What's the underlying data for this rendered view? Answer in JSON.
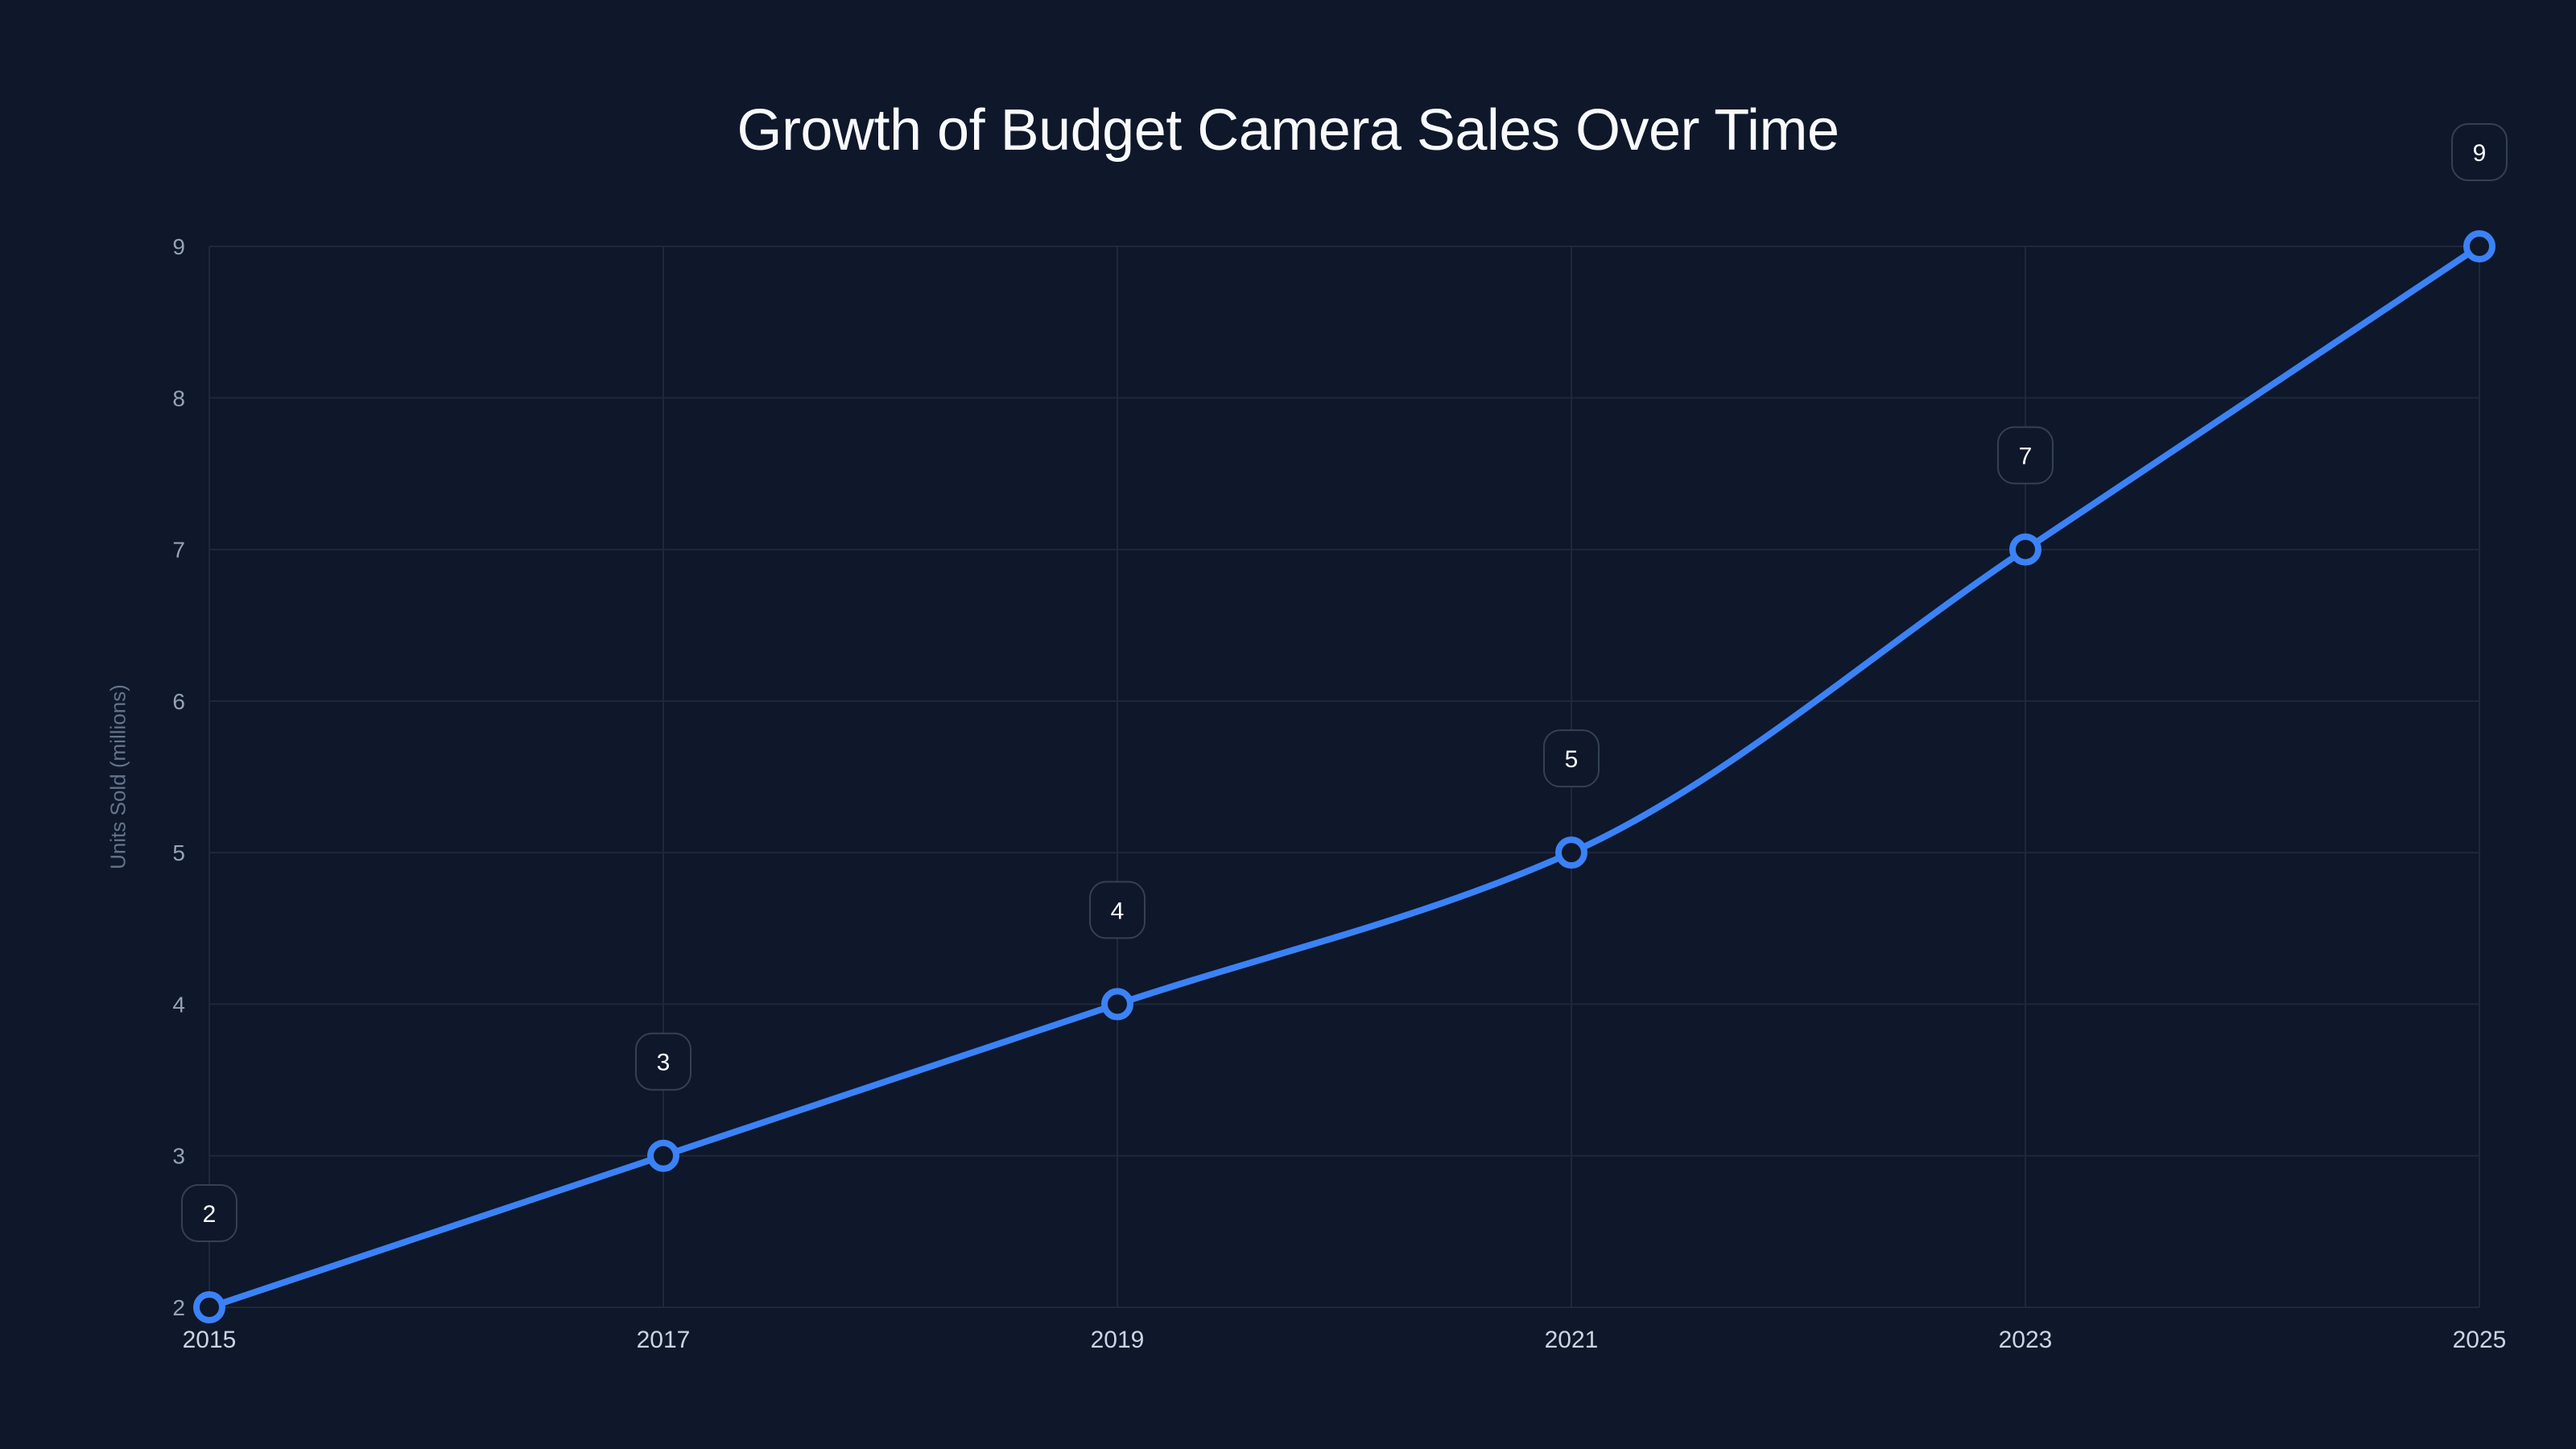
{
  "chart_data": {
    "type": "line",
    "title": "Growth of Budget Camera Sales Over Time",
    "xlabel": "",
    "ylabel": "Units Sold (millions)",
    "x": [
      2015,
      2017,
      2019,
      2021,
      2023,
      2025
    ],
    "categories": [
      "2015",
      "2017",
      "2019",
      "2021",
      "2023",
      "2025"
    ],
    "series": [
      {
        "name": "Units Sold (millions)",
        "values": [
          2,
          3,
          4,
          5,
          7,
          9
        ],
        "color": "#3b82f6"
      }
    ],
    "ylim": [
      2,
      9
    ],
    "xlim": [
      2015,
      2025
    ],
    "yticks": [
      2,
      3,
      4,
      5,
      6,
      7,
      8,
      9
    ],
    "xticks": [
      2015,
      2017,
      2019,
      2021,
      2023,
      2025
    ],
    "grid": true,
    "data_labels": true,
    "smooth": true,
    "legend": "none"
  },
  "colors": {
    "background": "#0f172a",
    "line": "#3b82f6",
    "grid": "#1e293b",
    "label_border": "#334155"
  }
}
